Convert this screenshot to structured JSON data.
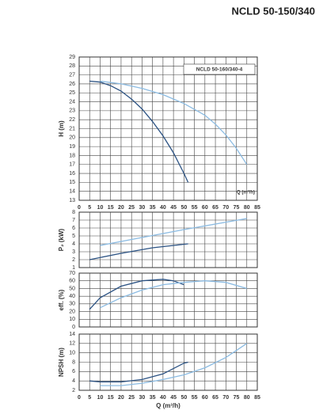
{
  "header": {
    "title": "NCLD 50-150/340"
  },
  "chart_data": [
    {
      "type": "line",
      "ylabel": "H (m)",
      "xlabel": "Q (m³/h)",
      "annotation": "NCLD 50-160/340-4",
      "xlim": [
        0,
        85
      ],
      "xticks": [
        0,
        5,
        10,
        15,
        20,
        25,
        30,
        35,
        40,
        45,
        50,
        55,
        60,
        65,
        70,
        75,
        80,
        85
      ],
      "show_x_tick_labels": true,
      "ylim": [
        13,
        29
      ],
      "yticks": [
        13,
        14,
        15,
        16,
        17,
        18,
        19,
        20,
        21,
        22,
        23,
        24,
        25,
        26,
        27,
        28,
        29
      ],
      "grid": true,
      "series": [
        {
          "color": "#2b5283",
          "x": [
            5,
            10,
            15,
            20,
            25,
            30,
            35,
            40,
            45,
            50,
            52
          ],
          "values": [
            26.3,
            26.2,
            25.8,
            25.2,
            24.3,
            23.2,
            21.8,
            20.2,
            18.3,
            16,
            15
          ]
        },
        {
          "color": "#8bbbe2",
          "x": [
            10,
            20,
            30,
            40,
            50,
            60,
            65,
            70,
            75,
            80
          ],
          "values": [
            26.3,
            26,
            25.5,
            24.8,
            23.8,
            22.5,
            21.5,
            20.3,
            18.8,
            17
          ]
        }
      ]
    },
    {
      "type": "line",
      "ylabel": "P₂ (kW)",
      "xlim": [
        0,
        85
      ],
      "xticks": [
        0,
        5,
        10,
        15,
        20,
        25,
        30,
        35,
        40,
        45,
        50,
        55,
        60,
        65,
        70,
        75,
        80,
        85
      ],
      "show_x_tick_labels": false,
      "ylim": [
        1,
        8
      ],
      "yticks": [
        1,
        2,
        3,
        4,
        5,
        6,
        7,
        8
      ],
      "grid": true,
      "series": [
        {
          "color": "#2b5283",
          "x": [
            5,
            20,
            35,
            52
          ],
          "values": [
            2,
            2.8,
            3.5,
            4
          ]
        },
        {
          "color": "#8bbbe2",
          "x": [
            10,
            30,
            50,
            80
          ],
          "values": [
            3.8,
            4.8,
            5.8,
            7.2
          ]
        }
      ]
    },
    {
      "type": "line",
      "ylabel": "eff. (%)",
      "xlim": [
        0,
        85
      ],
      "xticks": [
        0,
        5,
        10,
        15,
        20,
        25,
        30,
        35,
        40,
        45,
        50,
        55,
        60,
        65,
        70,
        75,
        80,
        85
      ],
      "show_x_tick_labels": false,
      "ylim": [
        0,
        70
      ],
      "yticks": [
        0,
        10,
        20,
        30,
        40,
        50,
        60,
        70
      ],
      "grid": true,
      "series": [
        {
          "color": "#2b5283",
          "x": [
            5,
            10,
            20,
            30,
            40,
            45,
            50
          ],
          "values": [
            23,
            38,
            53,
            60,
            62,
            60,
            55
          ]
        },
        {
          "color": "#8bbbe2",
          "x": [
            10,
            20,
            30,
            40,
            50,
            60,
            70,
            80
          ],
          "values": [
            25,
            38,
            48,
            55,
            58,
            60,
            58,
            50
          ]
        }
      ]
    },
    {
      "type": "line",
      "ylabel": "NPSH (m)",
      "xlabel": "Q (m³/h)",
      "xlim": [
        0,
        85
      ],
      "xticks": [
        0,
        5,
        10,
        15,
        20,
        25,
        30,
        35,
        40,
        45,
        50,
        55,
        60,
        65,
        70,
        75,
        80,
        85
      ],
      "show_x_tick_labels": true,
      "ylim": [
        2,
        14
      ],
      "yticks": [
        2,
        4,
        6,
        8,
        10,
        12,
        14
      ],
      "grid": true,
      "series": [
        {
          "color": "#2b5283",
          "x": [
            5,
            10,
            20,
            30,
            40,
            50,
            52
          ],
          "values": [
            4,
            3.8,
            3.8,
            4.3,
            5.5,
            7.8,
            8
          ]
        },
        {
          "color": "#8bbbe2",
          "x": [
            10,
            20,
            30,
            40,
            50,
            60,
            70,
            80
          ],
          "values": [
            3,
            3,
            3.5,
            4.3,
            5.3,
            6.8,
            9,
            12
          ]
        }
      ]
    }
  ]
}
